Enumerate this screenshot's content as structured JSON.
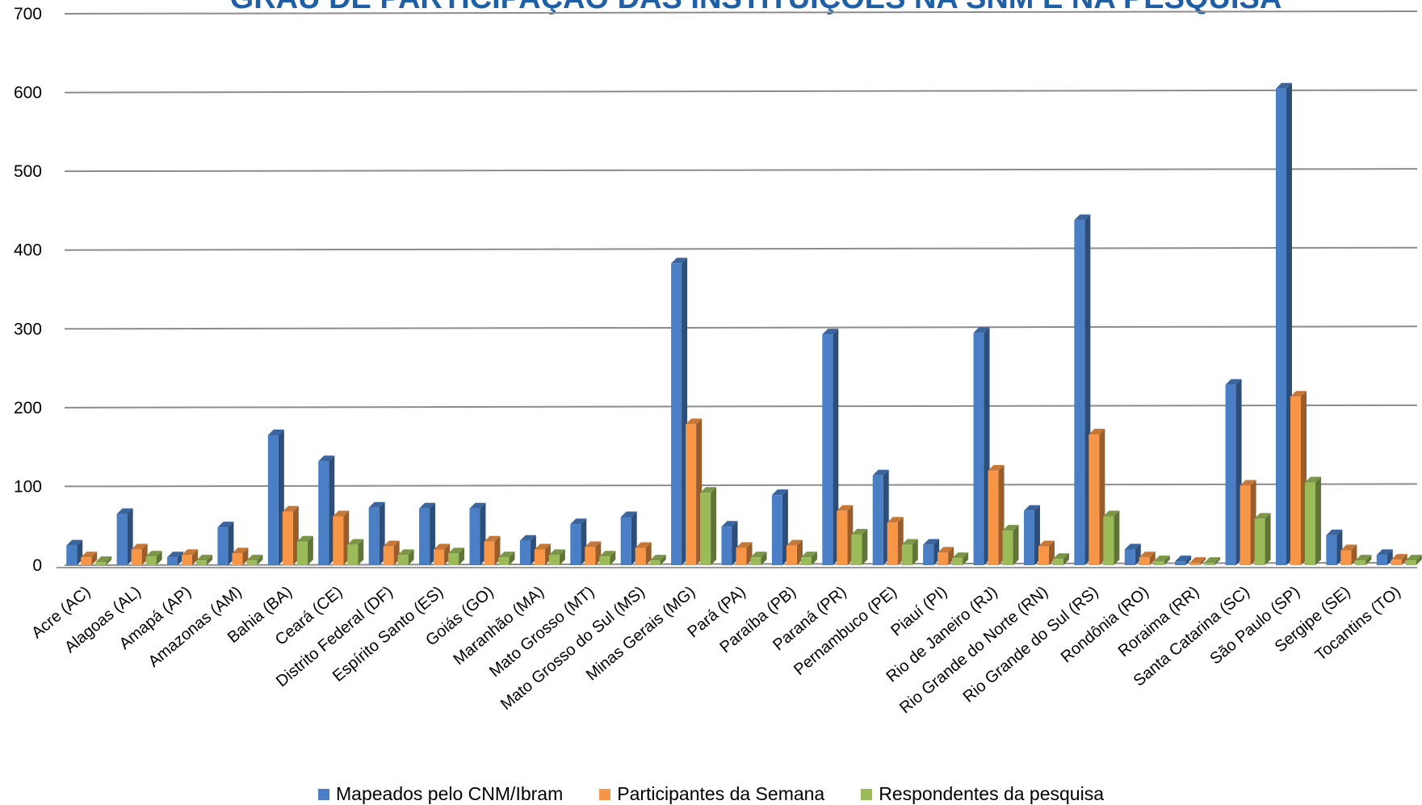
{
  "chart_data": {
    "type": "bar",
    "title": "GRAU DE PARTICIPAÇÃO DAS INSTITUIÇÕES NA SNM E NA PESQUISA",
    "ylim": [
      0,
      700
    ],
    "yticks": [
      0,
      100,
      200,
      300,
      400,
      500,
      600,
      700
    ],
    "grid": true,
    "legend_position": "bottom",
    "categories": [
      "Acre (AC)",
      "Alagoas (AL)",
      "Amapá (AP)",
      "Amazonas (AM)",
      "Bahia (BA)",
      "Ceará (CE)",
      "Distrito Federal (DF)",
      "Espírito Santo (ES)",
      "Goiás (GO)",
      "Maranhão (MA)",
      "Mato Grosso (MT)",
      "Mato Grosso do Sul (MS)",
      "Minas Gerais (MG)",
      "Pará (PA)",
      "Paraíba (PB)",
      "Paraná (PR)",
      "Pernambuco (PE)",
      "Piauí (PI)",
      "Rio de Janeiro (RJ)",
      "Rio Grande do Norte (RN)",
      "Rio Grande do Sul (RS)",
      "Rondônia (RO)",
      "Roraima (RR)",
      "Santa Catarina (SC)",
      "São Paulo (SP)",
      "Sergipe (SE)",
      "Tocantins (TO)"
    ],
    "series": [
      {
        "name": "Mapeados pelo CNM/Ibram",
        "color": "#4a7ec5",
        "values": [
          25,
          65,
          10,
          48,
          165,
          132,
          73,
          72,
          72,
          31,
          52,
          61,
          383,
          49,
          89,
          293,
          114,
          26,
          295,
          69,
          438,
          20,
          5,
          229,
          605,
          38,
          13
        ]
      },
      {
        "name": "Participantes da Semana",
        "color": "#f79646",
        "values": [
          10,
          20,
          13,
          15,
          68,
          62,
          24,
          20,
          30,
          20,
          23,
          22,
          179,
          22,
          25,
          69,
          54,
          16,
          120,
          24,
          166,
          10,
          3,
          101,
          214,
          19,
          7
        ]
      },
      {
        "name": "Respondentes da pesquisa",
        "color": "#9bbb59",
        "values": [
          4,
          11,
          6,
          6,
          30,
          26,
          13,
          15,
          10,
          13,
          11,
          6,
          92,
          10,
          10,
          39,
          26,
          9,
          44,
          8,
          62,
          5,
          3,
          59,
          105,
          6,
          6
        ]
      }
    ]
  }
}
